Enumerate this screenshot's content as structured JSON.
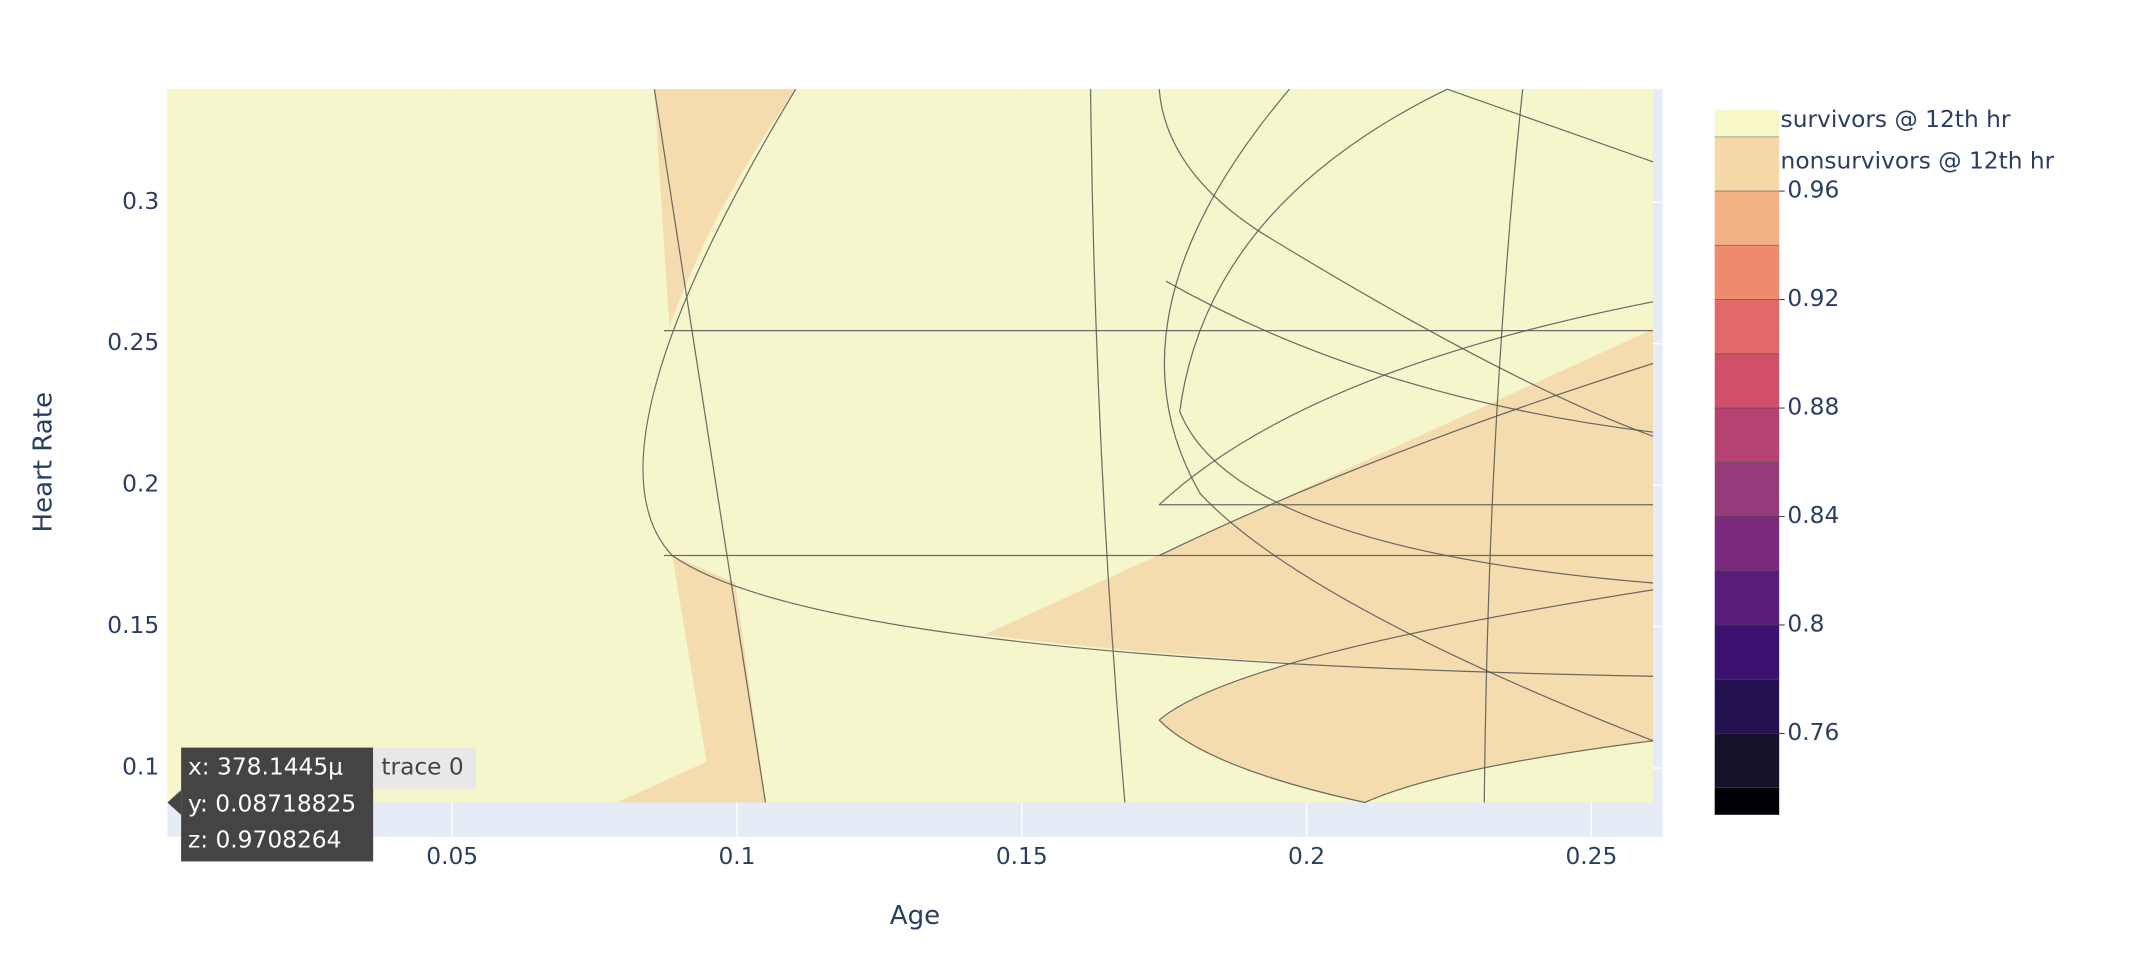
{
  "chart_data": {
    "type": "contour",
    "x_label": "Age",
    "y_label": "Heart Rate",
    "xlim": [
      0,
      0.2625
    ],
    "ylim": [
      0.0757,
      0.34
    ],
    "xticks": [
      0.05,
      0.1,
      0.15,
      0.2,
      0.25
    ],
    "yticks": [
      0.1,
      0.15,
      0.2,
      0.25,
      0.3
    ],
    "grid": true,
    "colorbar": {
      "zlim": [
        0.73,
        0.99
      ],
      "levels": [
        0.74,
        0.76,
        0.78,
        0.8,
        0.82,
        0.84,
        0.86,
        0.88,
        0.9,
        0.92,
        0.94,
        0.96,
        0.98
      ],
      "ticks": [
        0.76,
        0.8,
        0.84,
        0.88,
        0.92,
        0.96
      ],
      "colors": [
        "#000004",
        "#15112a",
        "#241150",
        "#3b1270",
        "#581c79",
        "#7a2a7c",
        "#953a7a",
        "#b54271",
        "#cf5068",
        "#e2686a",
        "#ee8a6e",
        "#f4b185",
        "#f6d8a8",
        "#f8f7c8"
      ]
    },
    "legend_labels": [
      "survivors @ 12th hr",
      "nonsurvivors @ 12th hr"
    ],
    "hover": {
      "lines": [
        "x: 378.1445μ",
        "y: 0.08718825",
        "z: 0.9708264"
      ],
      "trace": "trace 0"
    }
  }
}
